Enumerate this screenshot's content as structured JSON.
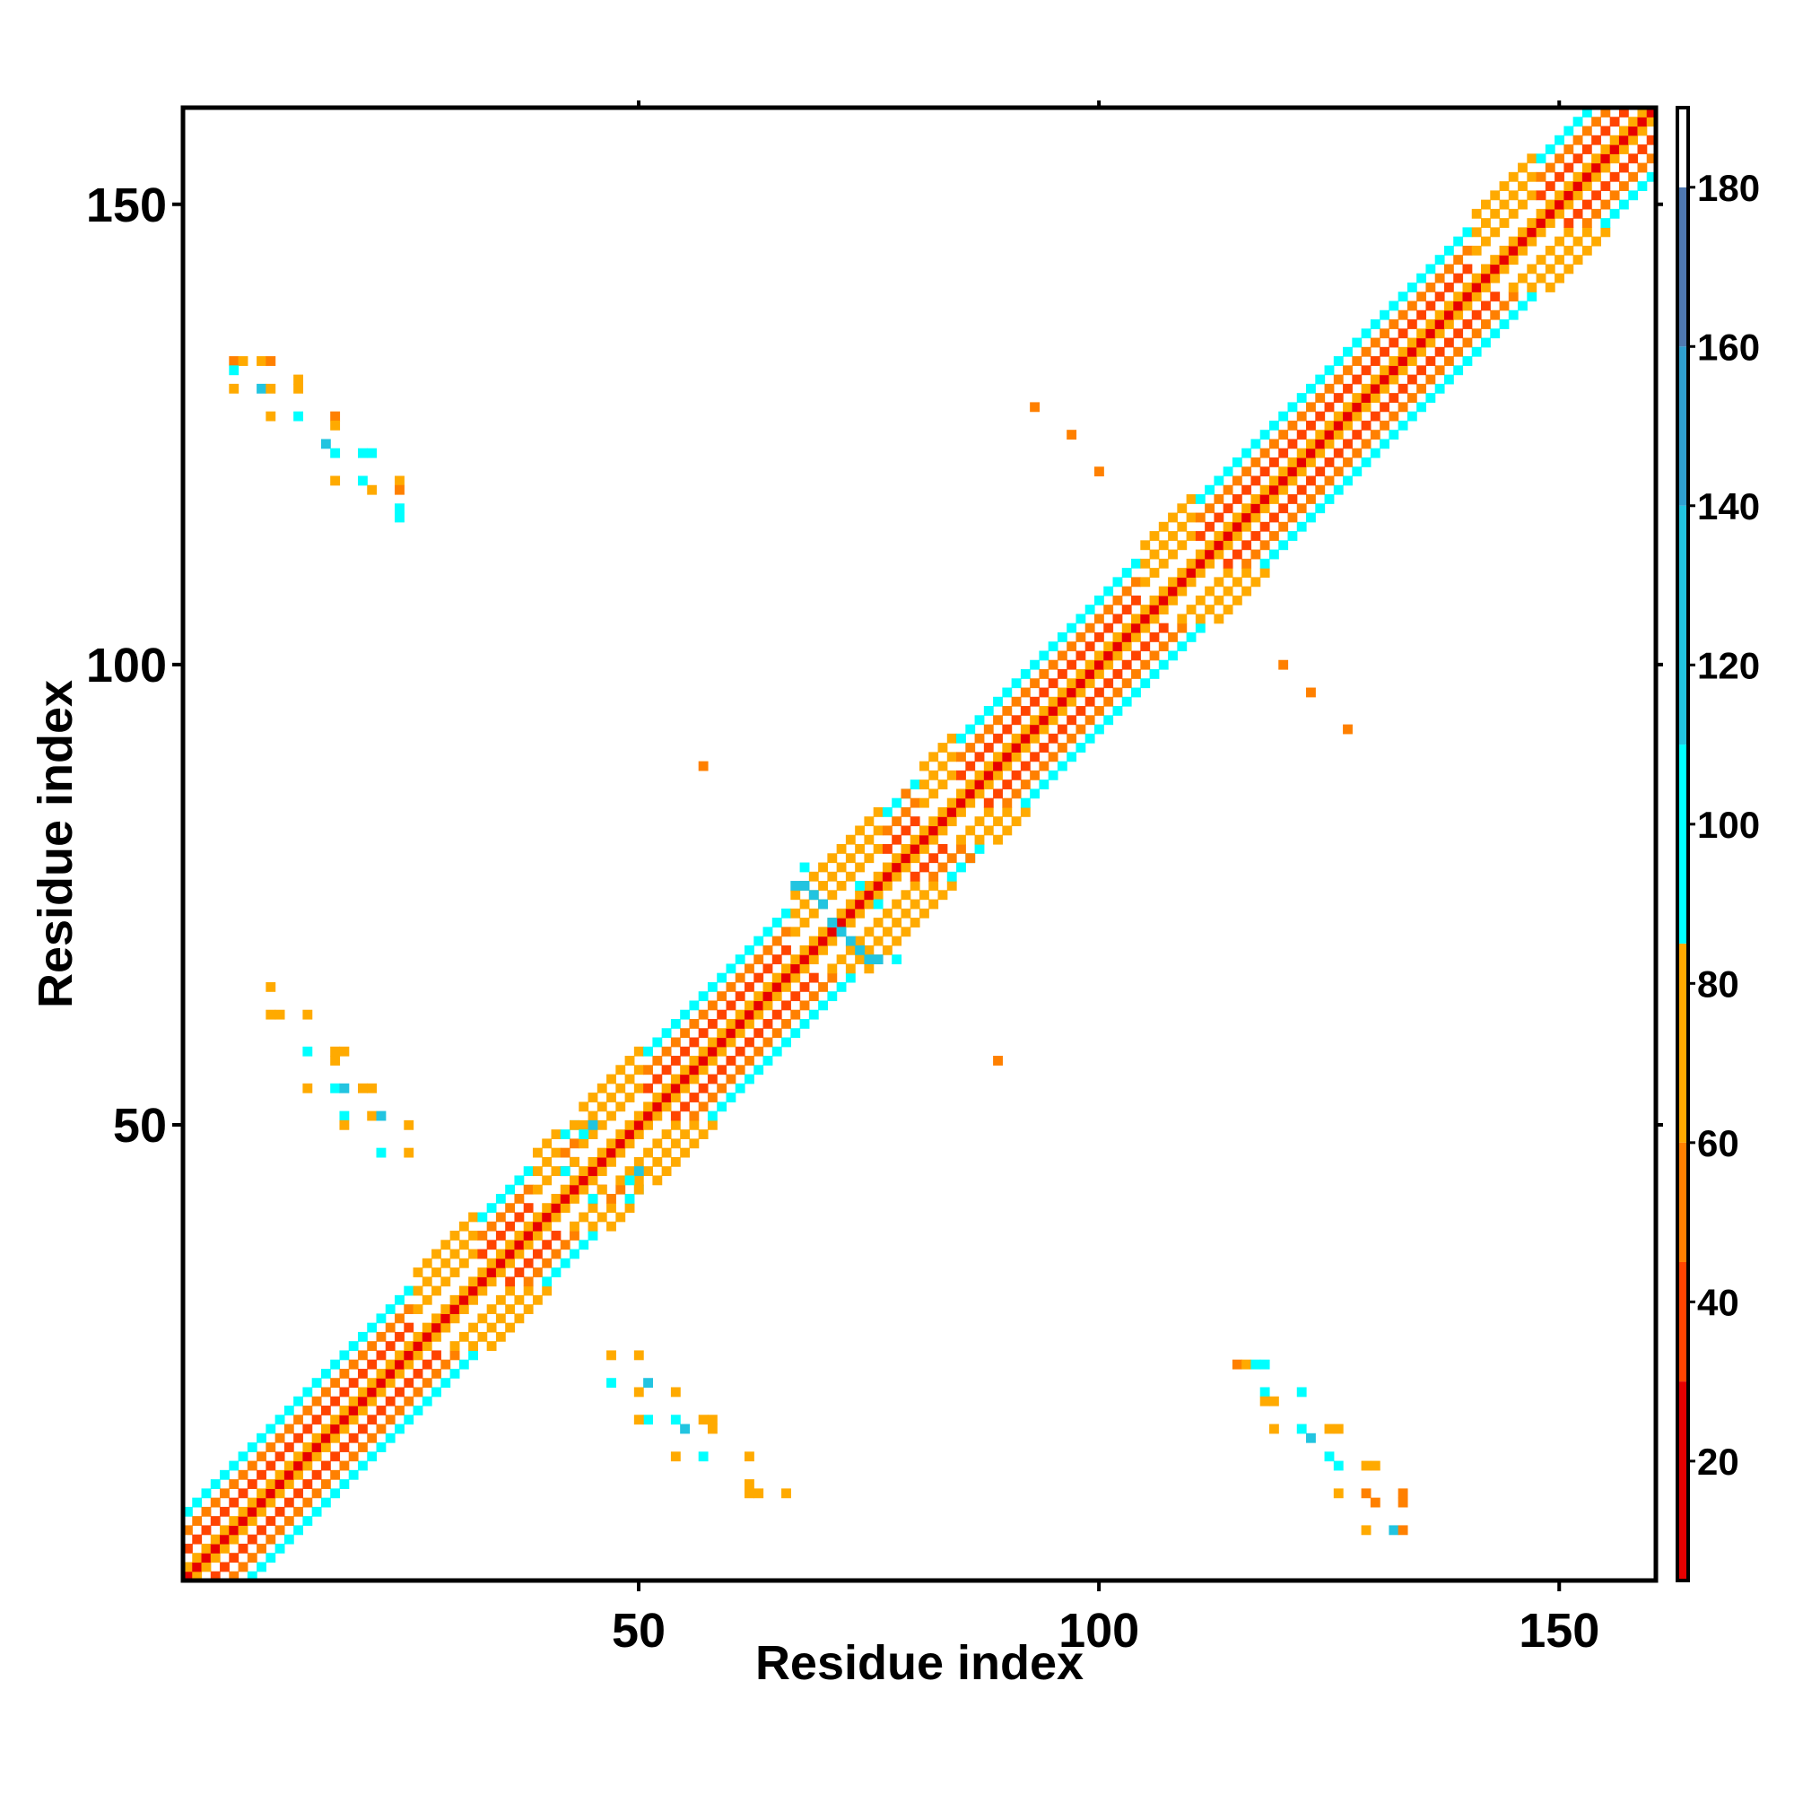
{
  "chart_data": {
    "type": "heatmap",
    "title": "",
    "xlabel": "Residue index",
    "ylabel": "Residue index",
    "xlim": [
      1,
      160
    ],
    "ylim": [
      1,
      160
    ],
    "x_ticks": [
      50,
      100,
      150
    ],
    "y_ticks": [
      50,
      100,
      150
    ],
    "grid": false,
    "legend": "none",
    "colorbar": {
      "placement": "right",
      "range": [
        5,
        190
      ],
      "ticks": [
        20,
        40,
        60,
        80,
        100,
        120,
        140,
        160,
        180
      ],
      "bands": [
        {
          "from": 5,
          "to": 30,
          "color": "#e60000"
        },
        {
          "from": 30,
          "to": 45,
          "color": "#ff4400"
        },
        {
          "from": 45,
          "to": 60,
          "color": "#ff8000"
        },
        {
          "from": 60,
          "to": 85,
          "color": "#ffaa00"
        },
        {
          "from": 85,
          "to": 110,
          "color": "#00ffff"
        },
        {
          "from": 110,
          "to": 140,
          "color": "#22c4e0"
        },
        {
          "from": 140,
          "to": 160,
          "color": "#2f9fd0"
        },
        {
          "from": 160,
          "to": 180,
          "color": "#4f78b0"
        },
        {
          "from": 180,
          "to": 190,
          "color": "#ffffff"
        }
      ]
    },
    "diagonal_band": {
      "description_values": "pairwise value as a function of |i-j| along the main diagonal",
      "offset_values": [
        5,
        70,
        200,
        30,
        200,
        50,
        200,
        95,
        200
      ],
      "segments": [
        {
          "from": 1,
          "to": 25,
          "type": "helix"
        },
        {
          "from": 25,
          "to": 32,
          "type": "loop"
        },
        {
          "from": 32,
          "to": 38,
          "type": "helix"
        },
        {
          "from": 38,
          "to": 41,
          "type": "loop"
        },
        {
          "from": 41,
          "to": 43,
          "type": "helix"
        },
        {
          "from": 43,
          "to": 50,
          "type": "loop"
        },
        {
          "from": 50,
          "to": 66,
          "type": "helix"
        },
        {
          "from": 66,
          "to": 76,
          "type": "loop"
        },
        {
          "from": 76,
          "to": 80,
          "type": "helix"
        },
        {
          "from": 80,
          "to": 84,
          "type": "loop"
        },
        {
          "from": 84,
          "to": 104,
          "type": "helix"
        },
        {
          "from": 104,
          "to": 110,
          "type": "loop"
        },
        {
          "from": 110,
          "to": 140,
          "type": "helix"
        },
        {
          "from": 140,
          "to": 147,
          "type": "loop"
        },
        {
          "from": 147,
          "to": 160,
          "type": "helix"
        }
      ]
    },
    "off_diagonal_cells": [
      {
        "x": 6,
        "y": 133,
        "v": 50
      },
      {
        "x": 7,
        "y": 133,
        "v": 70
      },
      {
        "x": 9,
        "y": 133,
        "v": 70
      },
      {
        "x": 10,
        "y": 133,
        "v": 50
      },
      {
        "x": 6,
        "y": 132,
        "v": 100
      },
      {
        "x": 6,
        "y": 130,
        "v": 70
      },
      {
        "x": 9,
        "y": 130,
        "v": 120
      },
      {
        "x": 10,
        "y": 130,
        "v": 70
      },
      {
        "x": 13,
        "y": 131,
        "v": 70
      },
      {
        "x": 13,
        "y": 130,
        "v": 70
      },
      {
        "x": 10,
        "y": 127,
        "v": 70
      },
      {
        "x": 13,
        "y": 127,
        "v": 100
      },
      {
        "x": 17,
        "y": 127,
        "v": 50
      },
      {
        "x": 17,
        "y": 126,
        "v": 70
      },
      {
        "x": 16,
        "y": 124,
        "v": 120
      },
      {
        "x": 17,
        "y": 123,
        "v": 100
      },
      {
        "x": 20,
        "y": 123,
        "v": 100
      },
      {
        "x": 21,
        "y": 123,
        "v": 100
      },
      {
        "x": 17,
        "y": 120,
        "v": 70
      },
      {
        "x": 20,
        "y": 120,
        "v": 100
      },
      {
        "x": 21,
        "y": 119,
        "v": 70
      },
      {
        "x": 24,
        "y": 120,
        "v": 70
      },
      {
        "x": 24,
        "y": 119,
        "v": 50
      },
      {
        "x": 24,
        "y": 117,
        "v": 100
      },
      {
        "x": 24,
        "y": 116,
        "v": 100
      },
      {
        "x": 10,
        "y": 65,
        "v": 70
      },
      {
        "x": 10,
        "y": 62,
        "v": 70
      },
      {
        "x": 11,
        "y": 62,
        "v": 70
      },
      {
        "x": 14,
        "y": 62,
        "v": 70
      },
      {
        "x": 14,
        "y": 58,
        "v": 100
      },
      {
        "x": 17,
        "y": 58,
        "v": 70
      },
      {
        "x": 18,
        "y": 58,
        "v": 70
      },
      {
        "x": 17,
        "y": 57,
        "v": 70
      },
      {
        "x": 14,
        "y": 54,
        "v": 70
      },
      {
        "x": 17,
        "y": 54,
        "v": 100
      },
      {
        "x": 18,
        "y": 54,
        "v": 120
      },
      {
        "x": 20,
        "y": 54,
        "v": 70
      },
      {
        "x": 21,
        "y": 54,
        "v": 70
      },
      {
        "x": 18,
        "y": 51,
        "v": 100
      },
      {
        "x": 21,
        "y": 51,
        "v": 70
      },
      {
        "x": 22,
        "y": 51,
        "v": 120
      },
      {
        "x": 25,
        "y": 50,
        "v": 70
      },
      {
        "x": 18,
        "y": 50,
        "v": 70
      },
      {
        "x": 22,
        "y": 47,
        "v": 100
      },
      {
        "x": 25,
        "y": 47,
        "v": 70
      },
      {
        "x": 47,
        "y": 25,
        "v": 70
      },
      {
        "x": 50,
        "y": 25,
        "v": 70
      },
      {
        "x": 47,
        "y": 22,
        "v": 100
      },
      {
        "x": 50,
        "y": 21,
        "v": 70
      },
      {
        "x": 51,
        "y": 22,
        "v": 120
      },
      {
        "x": 54,
        "y": 21,
        "v": 70
      },
      {
        "x": 51,
        "y": 18,
        "v": 100
      },
      {
        "x": 50,
        "y": 18,
        "v": 70
      },
      {
        "x": 54,
        "y": 18,
        "v": 100
      },
      {
        "x": 55,
        "y": 17,
        "v": 120
      },
      {
        "x": 57,
        "y": 18,
        "v": 70
      },
      {
        "x": 58,
        "y": 18,
        "v": 70
      },
      {
        "x": 58,
        "y": 17,
        "v": 70
      },
      {
        "x": 54,
        "y": 14,
        "v": 70
      },
      {
        "x": 57,
        "y": 14,
        "v": 100
      },
      {
        "x": 62,
        "y": 14,
        "v": 70
      },
      {
        "x": 62,
        "y": 11,
        "v": 70
      },
      {
        "x": 63,
        "y": 10,
        "v": 70
      },
      {
        "x": 62,
        "y": 10,
        "v": 70
      },
      {
        "x": 66,
        "y": 10,
        "v": 70
      },
      {
        "x": 115,
        "y": 24,
        "v": 50
      },
      {
        "x": 116,
        "y": 24,
        "v": 70
      },
      {
        "x": 117,
        "y": 24,
        "v": 100
      },
      {
        "x": 118,
        "y": 24,
        "v": 100
      },
      {
        "x": 118,
        "y": 21,
        "v": 100
      },
      {
        "x": 118,
        "y": 20,
        "v": 70
      },
      {
        "x": 119,
        "y": 20,
        "v": 70
      },
      {
        "x": 122,
        "y": 21,
        "v": 100
      },
      {
        "x": 119,
        "y": 17,
        "v": 70
      },
      {
        "x": 122,
        "y": 17,
        "v": 100
      },
      {
        "x": 123,
        "y": 16,
        "v": 120
      },
      {
        "x": 125,
        "y": 17,
        "v": 70
      },
      {
        "x": 126,
        "y": 17,
        "v": 70
      },
      {
        "x": 125,
        "y": 14,
        "v": 100
      },
      {
        "x": 126,
        "y": 13,
        "v": 100
      },
      {
        "x": 129,
        "y": 13,
        "v": 70
      },
      {
        "x": 130,
        "y": 13,
        "v": 70
      },
      {
        "x": 126,
        "y": 10,
        "v": 70
      },
      {
        "x": 129,
        "y": 10,
        "v": 50
      },
      {
        "x": 130,
        "y": 9,
        "v": 50
      },
      {
        "x": 133,
        "y": 10,
        "v": 50
      },
      {
        "x": 133,
        "y": 9,
        "v": 50
      },
      {
        "x": 129,
        "y": 6,
        "v": 70
      },
      {
        "x": 132,
        "y": 6,
        "v": 120
      },
      {
        "x": 133,
        "y": 6,
        "v": 50
      },
      {
        "x": 93,
        "y": 128,
        "v": 50
      },
      {
        "x": 97,
        "y": 125,
        "v": 50
      },
      {
        "x": 100,
        "y": 121,
        "v": 50
      },
      {
        "x": 120,
        "y": 100,
        "v": 50
      },
      {
        "x": 123,
        "y": 97,
        "v": 50
      },
      {
        "x": 127,
        "y": 93,
        "v": 50
      },
      {
        "x": 57,
        "y": 89,
        "v": 50
      },
      {
        "x": 89,
        "y": 57,
        "v": 50
      },
      {
        "x": 79,
        "y": 86,
        "v": 50
      },
      {
        "x": 86,
        "y": 79,
        "v": 50
      },
      {
        "x": 68,
        "y": 78,
        "v": 100
      },
      {
        "x": 67,
        "y": 76,
        "v": 120
      },
      {
        "x": 68,
        "y": 76,
        "v": 120
      },
      {
        "x": 69,
        "y": 75,
        "v": 120
      },
      {
        "x": 70,
        "y": 74,
        "v": 120
      },
      {
        "x": 71,
        "y": 72,
        "v": 120
      },
      {
        "x": 72,
        "y": 71,
        "v": 120
      },
      {
        "x": 73,
        "y": 70,
        "v": 120
      },
      {
        "x": 74,
        "y": 69,
        "v": 120
      },
      {
        "x": 75,
        "y": 68,
        "v": 120
      },
      {
        "x": 76,
        "y": 68,
        "v": 120
      },
      {
        "x": 78,
        "y": 68,
        "v": 100
      },
      {
        "x": 74,
        "y": 76,
        "v": 100
      },
      {
        "x": 76,
        "y": 74,
        "v": 100
      },
      {
        "x": 43,
        "y": 50,
        "v": 70
      },
      {
        "x": 44,
        "y": 49,
        "v": 100
      },
      {
        "x": 45,
        "y": 50,
        "v": 120
      },
      {
        "x": 50,
        "y": 45,
        "v": 120
      },
      {
        "x": 49,
        "y": 44,
        "v": 100
      },
      {
        "x": 50,
        "y": 43,
        "v": 70
      },
      {
        "x": 46,
        "y": 43,
        "v": 70
      },
      {
        "x": 43,
        "y": 46,
        "v": 70
      },
      {
        "x": 45,
        "y": 42,
        "v": 100
      },
      {
        "x": 42,
        "y": 45,
        "v": 100
      }
    ]
  }
}
